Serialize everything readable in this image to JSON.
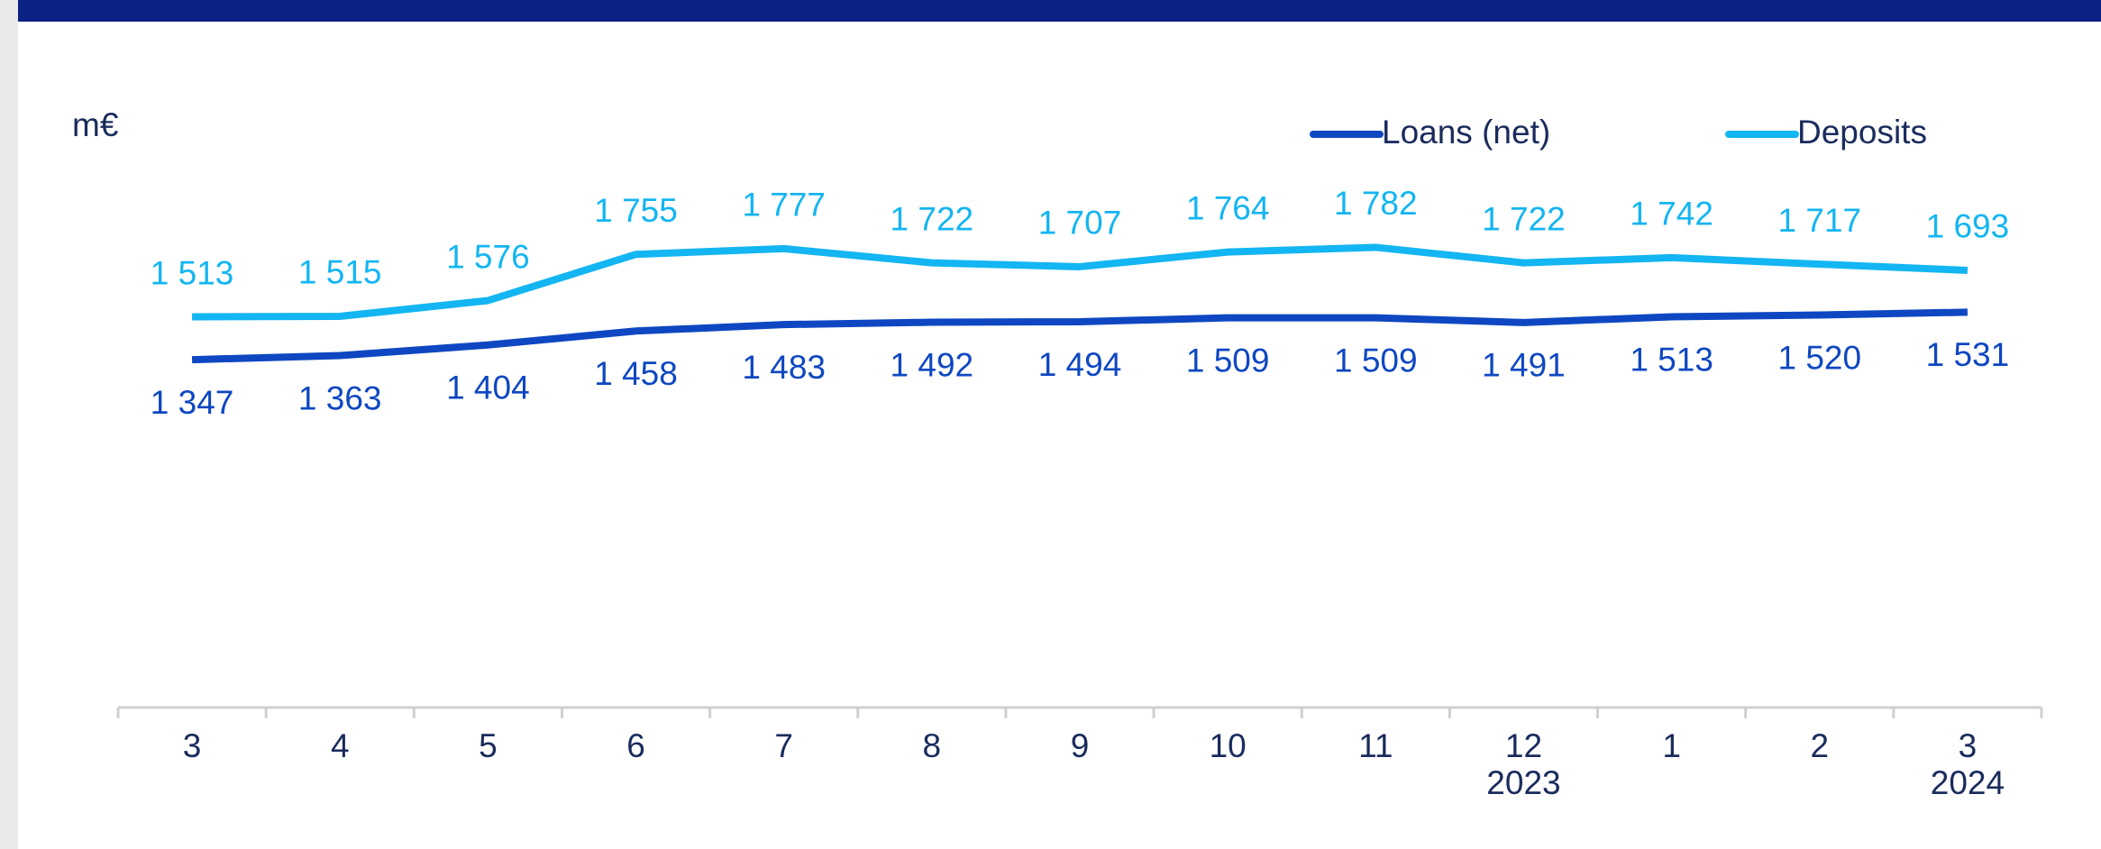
{
  "chart_data": {
    "type": "line",
    "y_label": "m€",
    "categories": [
      "3",
      "4",
      "5",
      "6",
      "7",
      "8",
      "9",
      "10",
      "11",
      "12",
      "1",
      "2",
      "3"
    ],
    "category_years": [
      null,
      null,
      null,
      null,
      null,
      null,
      null,
      null,
      null,
      "2023",
      null,
      null,
      "2024"
    ],
    "ylim": [
      0,
      2000
    ],
    "legend": "top-right",
    "series": [
      {
        "name": "Loans (net)",
        "color": "#0e47c1",
        "values": [
          1347,
          1363,
          1404,
          1458,
          1483,
          1492,
          1494,
          1509,
          1509,
          1491,
          1513,
          1520,
          1531
        ],
        "value_labels": [
          "1 347",
          "1 363",
          "1 404",
          "1 458",
          "1 483",
          "1 492",
          "1 494",
          "1 509",
          "1 509",
          "1 491",
          "1 513",
          "1 520",
          "1 531"
        ]
      },
      {
        "name": "Deposits",
        "color": "#13b5f2",
        "values": [
          1513,
          1515,
          1576,
          1755,
          1777,
          1722,
          1707,
          1764,
          1782,
          1722,
          1742,
          1717,
          1693
        ],
        "value_labels": [
          "1 513",
          "1 515",
          "1 576",
          "1 755",
          "1 777",
          "1 722",
          "1 707",
          "1 764",
          "1 782",
          "1 722",
          "1 742",
          "1 717",
          "1 693"
        ]
      }
    ]
  }
}
